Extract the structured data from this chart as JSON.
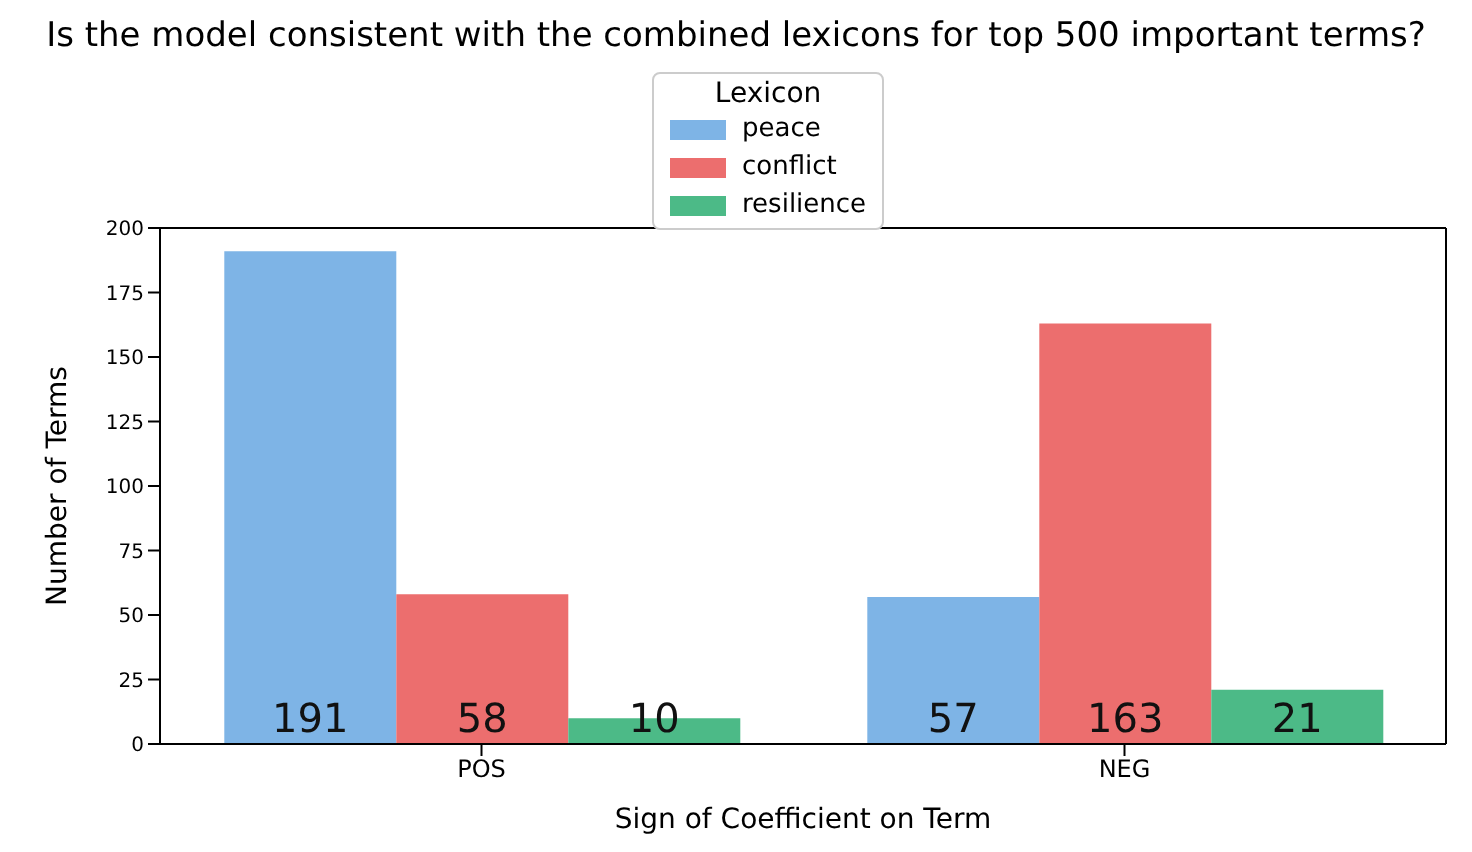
{
  "chart_data": {
    "type": "bar",
    "title": "Is the model consistent with the combined lexicons for top 500 important terms?",
    "xlabel": "Sign of Coefficient on Term",
    "ylabel": "Number of Terms",
    "legend_title": "Lexicon",
    "categories": [
      "POS",
      "NEG"
    ],
    "series": [
      {
        "name": "peace",
        "color": "#7eb4e6",
        "values": [
          191,
          57
        ]
      },
      {
        "name": "conflict",
        "color": "#ec6e6e",
        "values": [
          58,
          163
        ]
      },
      {
        "name": "resilience",
        "color": "#4cba87",
        "values": [
          10,
          21
        ]
      }
    ],
    "ylim": [
      0,
      200
    ],
    "yticks": [
      0,
      25,
      50,
      75,
      100,
      125,
      150,
      175,
      200
    ],
    "data_labels": true,
    "legend": "top",
    "grid": false
  }
}
